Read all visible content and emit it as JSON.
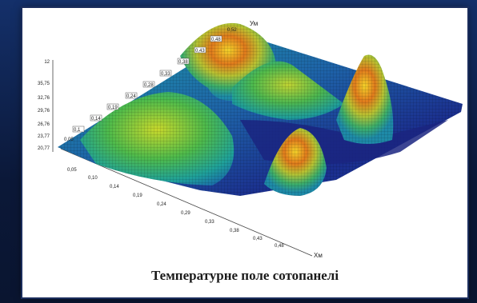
{
  "caption": "Температурне поле сотопанелі",
  "axes": {
    "x_label": "Хм",
    "y_label": "Ум",
    "z_ticks": [
      "12",
      "35,75",
      "32,76",
      "29,76",
      "26,76",
      "23,77",
      "20,77"
    ],
    "x_ticks": [
      "0,05",
      "0,10",
      "0,14",
      "0,19",
      "0,24",
      "0,29",
      "0,33",
      "0,38",
      "0,43",
      "0,48"
    ],
    "y_ticks": [
      "0,05",
      "0,1",
      "0,14",
      "0,19",
      "0,24",
      "0,28",
      "0,33",
      "0,38",
      "0,43",
      "0,48",
      "0,52"
    ]
  },
  "colors": {
    "background": "#0d1a3a",
    "panel": "#ffffff",
    "surface_low": "#1b2a8a",
    "surface_mid": "#2a9fb0",
    "surface_high": "#d94a1e",
    "surface_peak": "#f2d22a"
  }
}
